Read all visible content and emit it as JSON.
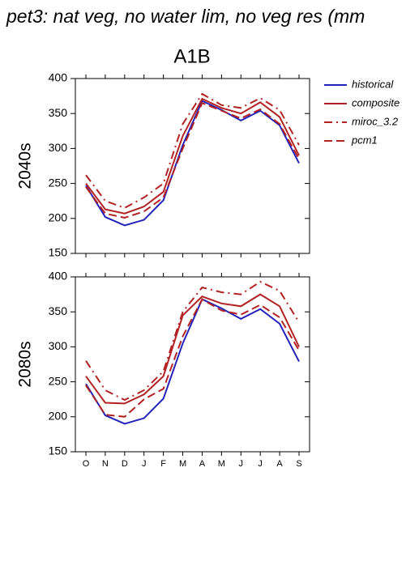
{
  "title": "pet3: nat veg, no water lim, no veg res (mm",
  "subtitle": "A1B",
  "chart_data": [
    {
      "type": "line",
      "ylabel": "2040s",
      "categories": [
        "O",
        "N",
        "D",
        "J",
        "F",
        "M",
        "A",
        "M",
        "J",
        "J",
        "A",
        "S"
      ],
      "ylim": [
        150,
        400
      ],
      "yticks": [
        150,
        200,
        250,
        300,
        350,
        400
      ],
      "series": [
        {
          "name": "historical",
          "color": "#2222bb",
          "style": "solid",
          "values": [
            247,
            202,
            190,
            198,
            226,
            305,
            368,
            355,
            340,
            354,
            333,
            279
          ]
        },
        {
          "name": "composite",
          "color": "#b22222",
          "style": "solid",
          "values": [
            250,
            213,
            207,
            217,
            238,
            318,
            371,
            358,
            350,
            366,
            345,
            290
          ]
        },
        {
          "name": "miroc_3.2",
          "color": "#b22222",
          "style": "dashdot",
          "values": [
            262,
            225,
            215,
            230,
            250,
            335,
            378,
            362,
            358,
            372,
            355,
            305
          ]
        },
        {
          "name": "pcm1",
          "color": "#b22222",
          "style": "dash",
          "values": [
            245,
            207,
            201,
            210,
            230,
            300,
            365,
            354,
            343,
            356,
            335,
            285
          ]
        }
      ]
    },
    {
      "type": "line",
      "ylabel": "2080s",
      "categories": [
        "O",
        "N",
        "D",
        "J",
        "F",
        "M",
        "A",
        "M",
        "J",
        "J",
        "A",
        "S"
      ],
      "ylim": [
        150,
        400
      ],
      "yticks": [
        150,
        200,
        250,
        300,
        350,
        400
      ],
      "series": [
        {
          "values": [
            247,
            202,
            190,
            198,
            226,
            305,
            368,
            355,
            340,
            354,
            333,
            279
          ]
        },
        {
          "values": [
            258,
            220,
            219,
            232,
            258,
            345,
            372,
            362,
            358,
            375,
            358,
            300
          ]
        },
        {
          "values": [
            280,
            238,
            224,
            238,
            265,
            350,
            385,
            378,
            375,
            393,
            380,
            335
          ]
        },
        {
          "values": [
            245,
            203,
            200,
            225,
            240,
            315,
            368,
            352,
            346,
            360,
            342,
            295
          ]
        }
      ]
    }
  ]
}
